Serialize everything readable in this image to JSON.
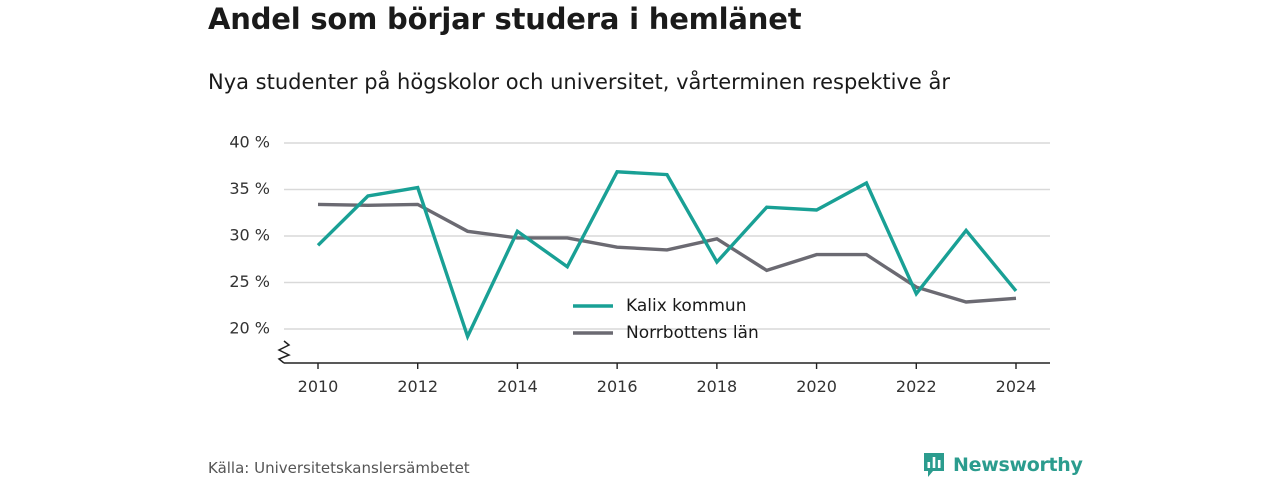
{
  "title": "Andel som börjar studera i hemlänet",
  "subtitle": "Nya studenter på högskolor och universitet, vårterminen respektive år",
  "source": "Källa: Universitetskanslersämbetet",
  "brand": {
    "name": "Newsworthy",
    "icon": "newsworthy-chart-bubble-icon",
    "color": "#2b9c8e"
  },
  "chart_data": {
    "type": "line",
    "title": "Andel som börjar studera i hemlänet",
    "subtitle": "Nya studenter på högskolor och universitet, vårterminen respektive år",
    "x": [
      2010,
      2011,
      2012,
      2013,
      2014,
      2015,
      2016,
      2017,
      2018,
      2019,
      2020,
      2021,
      2022,
      2023,
      2024
    ],
    "x_ticks": [
      2010,
      2012,
      2014,
      2016,
      2018,
      2020,
      2022,
      2024
    ],
    "y_ticks": [
      20,
      25,
      30,
      35,
      40
    ],
    "y_tick_suffix": " %",
    "ylim": [
      16.5,
      40
    ],
    "y_axis_break": true,
    "grid": "horizontal",
    "legend_position": "bottom-center",
    "series": [
      {
        "name": "Kalix kommun",
        "color": "#19a095",
        "values": [
          29.0,
          34.3,
          35.2,
          19.2,
          30.5,
          26.7,
          36.9,
          36.6,
          27.2,
          33.1,
          32.8,
          35.7,
          23.8,
          30.6,
          24.1
        ]
      },
      {
        "name": "Norrbottens län",
        "color": "#6b6a72",
        "values": [
          33.4,
          33.3,
          33.4,
          30.5,
          29.8,
          29.8,
          28.8,
          28.5,
          29.7,
          26.3,
          28.0,
          28.0,
          24.5,
          22.9,
          23.3
        ]
      }
    ]
  }
}
